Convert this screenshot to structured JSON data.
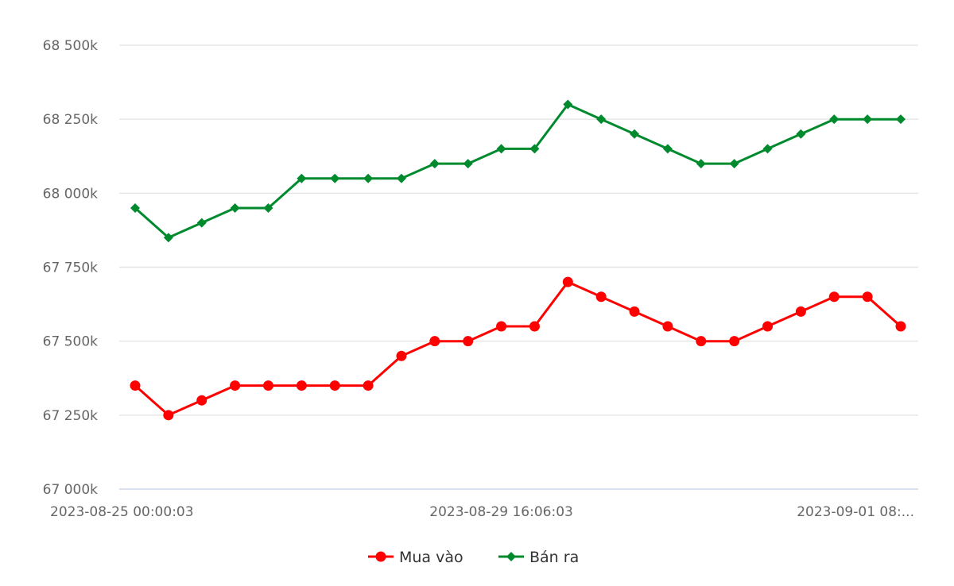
{
  "chart_data": {
    "type": "line",
    "title": "",
    "xlabel": "",
    "ylabel": "",
    "ylim": [
      67000,
      68500
    ],
    "y_ticks": [
      67000,
      67250,
      67500,
      67750,
      68000,
      68250,
      68500
    ],
    "y_tick_labels": [
      "67 000k",
      "67 250k",
      "67 500k",
      "67 750k",
      "68 000k",
      "68 250k",
      "68 500k"
    ],
    "x_tick_labels": [
      {
        "index": 0,
        "label": "2023-08-25 00:00:03"
      },
      {
        "index": 11,
        "label": "2023-08-29 16:06:03"
      },
      {
        "index": 22,
        "label": "2023-09-01 08:..."
      }
    ],
    "grid": true,
    "legend_position": "bottom-center",
    "series": [
      {
        "name": "Mua vào",
        "color": "#ff0000",
        "marker": "circle",
        "values": [
          67350,
          67250,
          67300,
          67350,
          67350,
          67350,
          67350,
          67350,
          67450,
          67500,
          67500,
          67550,
          67550,
          67700,
          67650,
          67600,
          67550,
          67500,
          67500,
          67550,
          67600,
          67650,
          67650,
          67550
        ]
      },
      {
        "name": "Bán ra",
        "color": "#008a2e",
        "marker": "diamond",
        "values": [
          67950,
          67850,
          67900,
          67950,
          67950,
          68050,
          68050,
          68050,
          68050,
          68100,
          68100,
          68150,
          68150,
          68300,
          68250,
          68200,
          68150,
          68100,
          68100,
          68150,
          68200,
          68250,
          68250,
          68250
        ]
      }
    ]
  }
}
